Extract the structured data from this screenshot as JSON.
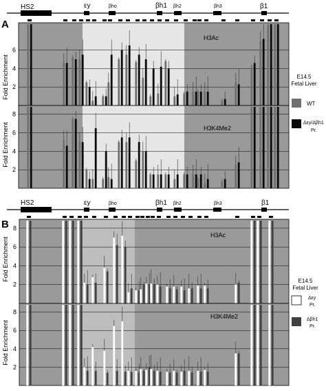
{
  "colors": {
    "dark_bg": "#9a9a9a",
    "mid_bg": "#bdbdbd",
    "light_bg": "#e6e6e6",
    "wt": "#707070",
    "mutant_A": "#0a0a0a",
    "ey_pr": "#ffffff",
    "bh1_pr": "#404040"
  },
  "panelA": {
    "letter": "A",
    "locus": {
      "hs2": "HS2",
      "ey": "εy",
      "bho": "βho",
      "bh1": "βh1",
      "bh2": "βh2",
      "bh3": "βh3",
      "b1": "β1"
    },
    "legend": {
      "tissue_line1": "E14.5",
      "tissue_line2": "Fetal Liver",
      "wt": "WT",
      "mut_line1": "Δεy/Δβh1",
      "mut_line2": "Pr."
    }
  },
  "panelB": {
    "letter": "B",
    "locus": {
      "hs2": "HS2",
      "ey": "εy",
      "bho": "βho",
      "bh1": "βh1",
      "bh2": "βh2",
      "bh3": "βh3",
      "b1": "β1"
    },
    "legend": {
      "tissue_line1": "E14.5",
      "tissue_line2": "Fetal Liver",
      "ey_line1": "Δεy",
      "ey_line2": "Pr.",
      "bh1_line1": "Δβh1",
      "bh1_line2": "Pr."
    }
  },
  "chart_data": [
    {
      "type": "bar",
      "panel": "A",
      "label": "H3Ac",
      "ylabel": "Fold Enrichment",
      "yticks": [
        2,
        4,
        6
      ],
      "ylim": [
        0,
        8.8
      ],
      "series": [
        {
          "name": "WT",
          "values": [
            8.8,
            4.6,
            5.2,
            5.0,
            2.5,
            0.5,
            1.0,
            2.5,
            5.0,
            5.5,
            4.7,
            3.0,
            1.0,
            1.3,
            4.8,
            1.0,
            1.3,
            1.5,
            1.5,
            1.5,
            0.5,
            2.5,
            4.2,
            7.0,
            8.8,
            8.8
          ]
        },
        {
          "name": "Δεy/Δβh1 Pr.",
          "values": [
            8.8,
            4.6,
            5.0,
            5.5,
            2.0,
            1.0,
            1.0,
            5.5,
            6.0,
            6.5,
            5.5,
            5.0,
            4.0,
            4.2,
            4.0,
            1.2,
            1.5,
            1.5,
            1.5,
            1.5,
            0.7,
            2.3,
            4.6,
            7.2,
            8.8,
            8.8
          ]
        }
      ]
    },
    {
      "type": "bar",
      "panel": "A",
      "label": "H3K4Me2",
      "ylabel": "Fold Enrichment",
      "yticks": [
        2,
        4,
        6,
        8
      ],
      "ylim": [
        0,
        8.8
      ],
      "series": [
        {
          "name": "WT",
          "values": [
            8.8,
            5.2,
            7.5,
            5.0,
            2.0,
            1.0,
            1.0,
            1.2,
            5.0,
            5.0,
            3.0,
            4.0,
            1.5,
            1.5,
            1.5,
            1.0,
            1.5,
            1.5,
            1.0,
            0.5,
            0.7,
            2.5,
            8.8,
            8.8,
            8.8,
            8.8
          ]
        },
        {
          "name": "Δεy/Δβh1 Pr.",
          "values": [
            8.8,
            4.6,
            7.5,
            5.0,
            1.0,
            6.5,
            4.0,
            1.0,
            5.5,
            5.5,
            5.0,
            4.0,
            1.5,
            1.5,
            1.5,
            1.5,
            1.5,
            1.5,
            1.5,
            1.0,
            1.0,
            2.8,
            8.8,
            8.8,
            8.8,
            8.8
          ]
        }
      ]
    },
    {
      "type": "bar",
      "panel": "B",
      "label": "H3Ac",
      "ylabel": "Fold Enrichment",
      "yticks": [
        2,
        4,
        6,
        8
      ],
      "ylim": [
        0,
        8.8
      ],
      "series": [
        {
          "name": "Δεy Pr.",
          "values": [
            8.8,
            8.8,
            8.8,
            8.8,
            2.2,
            2.8,
            3.8,
            7.0,
            7.2,
            1.2,
            1.4,
            1.5,
            2.1,
            2.1,
            2.0,
            1.8,
            1.8,
            1.8,
            1.6,
            1.9,
            1.9,
            2.0,
            8.8,
            8.8,
            8.8
          ]
        },
        {
          "name": "Δβh1 Pr.",
          "values": [
            8.8,
            8.8,
            8.8,
            8.8,
            2.0,
            2.2,
            3.4,
            6.2,
            6.0,
            1.6,
            1.4,
            2.0,
            2.0,
            2.0,
            1.8,
            1.6,
            1.5,
            1.4,
            1.6,
            1.6,
            1.6,
            2.2,
            8.8,
            8.8,
            8.8
          ]
        }
      ]
    },
    {
      "type": "bar",
      "panel": "B",
      "label": "H3K4Me2",
      "ylabel": "Fold Enrichment",
      "yticks": [
        2,
        4,
        6,
        8
      ],
      "ylim": [
        0,
        8.8
      ],
      "series": [
        {
          "name": "Δεy Pr.",
          "values": [
            8.8,
            8.8,
            8.8,
            8.8,
            2.0,
            4.2,
            3.8,
            6.5,
            7.0,
            1.6,
            1.6,
            1.8,
            1.7,
            1.8,
            1.6,
            1.5,
            1.6,
            1.5,
            1.6,
            1.6,
            1.7,
            3.5,
            8.8,
            8.8,
            8.8
          ]
        },
        {
          "name": "Δβh1 Pr.",
          "values": [
            8.8,
            8.8,
            8.8,
            8.8,
            1.6,
            1.6,
            1.4,
            1.6,
            1.5,
            1.5,
            1.4,
            1.6,
            2.0,
            1.6,
            1.5,
            1.4,
            1.4,
            1.6,
            1.4,
            1.5,
            1.5,
            3.5,
            8.8,
            8.8,
            8.8
          ]
        }
      ]
    }
  ]
}
